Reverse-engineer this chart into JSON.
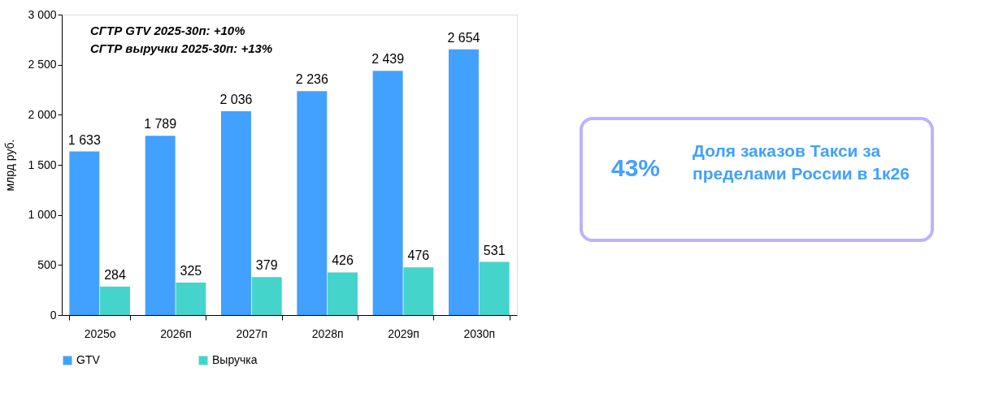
{
  "chart_data": [
    {
      "type": "bar",
      "ylabel": "млрд руб.",
      "categories": [
        "2025о",
        "2026п",
        "2027п",
        "2028п",
        "2029п",
        "2030п"
      ],
      "series": [
        {
          "name": "GTV",
          "color": "#42a1ff",
          "values": [
            1633,
            1789,
            2036,
            2236,
            2439,
            2654
          ],
          "value_labels": [
            "1 633",
            "1 789",
            "2 036",
            "2 236",
            "2 439",
            "2 654"
          ]
        },
        {
          "name": "Выручка",
          "color": "#45d4cc",
          "values": [
            284,
            325,
            379,
            426,
            476,
            531
          ],
          "value_labels": [
            "284",
            "325",
            "379",
            "426",
            "476",
            "531"
          ]
        }
      ],
      "ylim": [
        0,
        3000
      ],
      "yticks": [
        0,
        500,
        {
          "value": 1000,
          "label": "1 000"
        },
        {
          "value": 1500,
          "label": "1 500"
        },
        {
          "value": 2000,
          "label": "2 000"
        },
        {
          "value": 2500,
          "label": "2 500"
        },
        {
          "value": 3000,
          "label": "3 000"
        }
      ],
      "grid": false,
      "legend": "bottom",
      "annotations": [
        "СГТР GTV 2025-30п: +10%",
        "СГТР  выручки 2025-30п: +13%"
      ]
    },
    {
      "type": "other",
      "annotations": [
        "43%",
        "Доля заказов Такси за пределами России в 1к26"
      ]
    }
  ]
}
